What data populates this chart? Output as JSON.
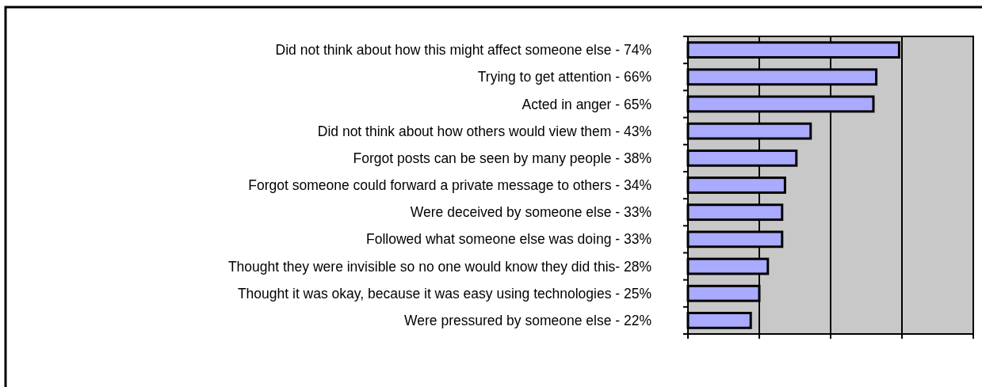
{
  "chart_data": {
    "type": "bar",
    "orientation": "horizontal",
    "categories": [
      "Did not think about how this might affect someone else -",
      "Trying to get attention -",
      "Acted in anger -",
      "Did not think about how others would view them -",
      "Forgot posts can be seen by many people -",
      "Forgot someone could forward a private message to others -",
      "Were deceived by someone else -",
      "Followed what someone else was doing -",
      "Thought they were invisible so no one would know they did this-",
      "Thought it was okay, because it was easy using technologies -",
      "Were pressured by someone else -"
    ],
    "values": [
      74,
      66,
      65,
      43,
      38,
      34,
      33,
      33,
      28,
      25,
      22
    ],
    "value_labels": [
      "74%",
      "66%",
      "65%",
      "43%",
      "38%",
      "34%",
      "33%",
      "33%",
      "28%",
      "25%",
      "22%"
    ],
    "color": "#aaaaff",
    "xlim": [
      0,
      100
    ],
    "xticks": [
      {
        "value": 0,
        "label": null
      },
      {
        "value": 25,
        "label": null
      },
      {
        "value": 50,
        "label": null
      },
      {
        "value": 75,
        "label": null
      },
      {
        "value": 100,
        "label": null
      }
    ],
    "grid": "x",
    "tick_labels": "y"
  }
}
